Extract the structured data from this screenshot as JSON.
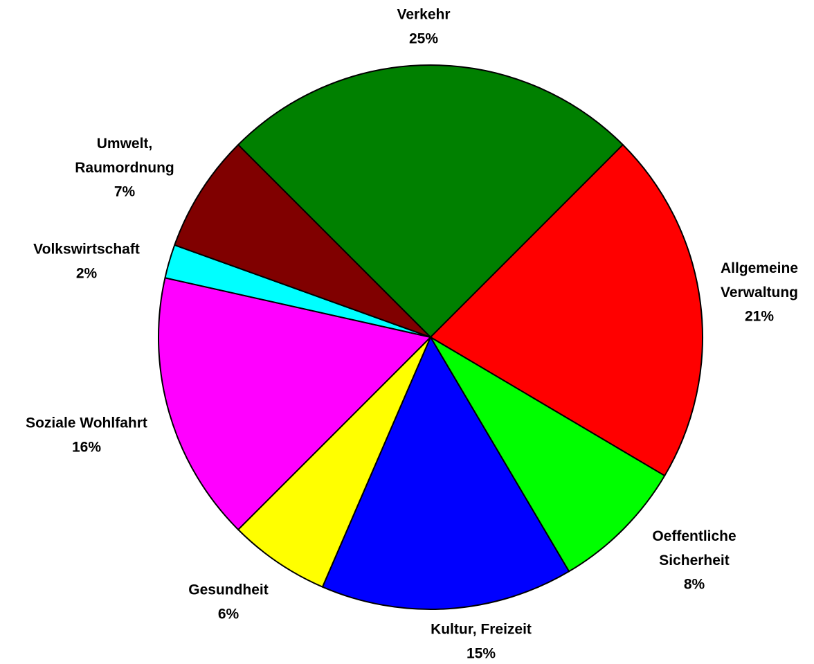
{
  "chart_data": {
    "type": "pie",
    "categories": [
      "Verkehr",
      "Allgemeine Verwaltung",
      "Oeffentliche Sicherheit",
      "Kultur, Freizeit",
      "Gesundheit",
      "Soziale Wohlfahrt",
      "Volkswirtschaft",
      "Umwelt, Raumordnung"
    ],
    "values": [
      25,
      21,
      8,
      15,
      6,
      16,
      2,
      7
    ],
    "value_labels": [
      "25%",
      "21%",
      "8%",
      "15%",
      "6%",
      "16%",
      "2%",
      "7%"
    ],
    "colors": [
      "#008000",
      "#ff0000",
      "#00ff00",
      "#0000ff",
      "#ffff00",
      "#ff00ff",
      "#00ffff",
      "#800000"
    ]
  }
}
